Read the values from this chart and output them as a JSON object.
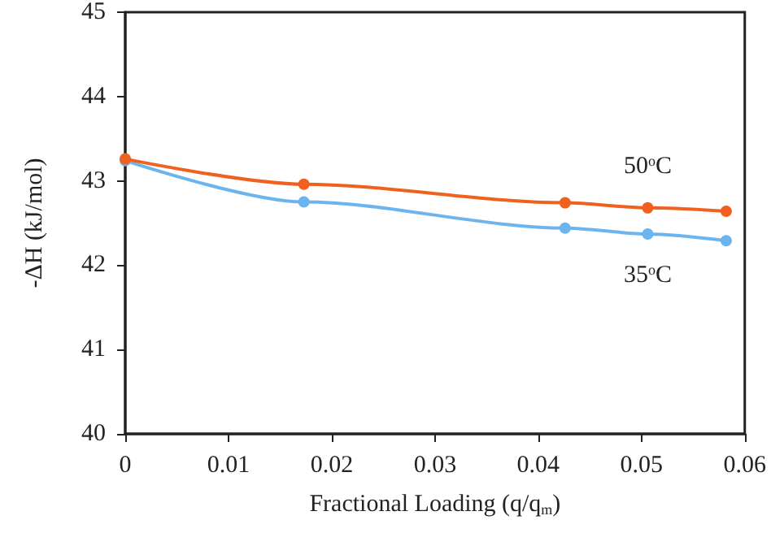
{
  "chart_data": {
    "type": "line",
    "xlabel": "Fractional Loading (q/q$_{m}$)",
    "ylabel": "-ΔH (kJ/mol)",
    "xlim": [
      0,
      0.06
    ],
    "xticks": [
      0,
      0.01,
      0.02,
      0.03,
      0.04,
      0.05,
      0.06
    ],
    "ylim": [
      40,
      45
    ],
    "yticks": [
      40,
      41,
      42,
      43,
      44,
      45
    ],
    "grid": false,
    "legend": false,
    "marker": "circle",
    "series": [
      {
        "name": "50$^{o}$C",
        "color": "#f0601e",
        "x": [
          0,
          0.0173,
          0.0426,
          0.0506,
          0.0582
        ],
        "values": [
          43.26,
          42.96,
          42.74,
          42.68,
          42.64
        ]
      },
      {
        "name": "35$^{o}$C",
        "color": "#6cb4ee",
        "x": [
          0,
          0.0173,
          0.0426,
          0.0506,
          0.0582
        ],
        "values": [
          43.24,
          42.75,
          42.44,
          42.37,
          42.29
        ]
      }
    ]
  }
}
